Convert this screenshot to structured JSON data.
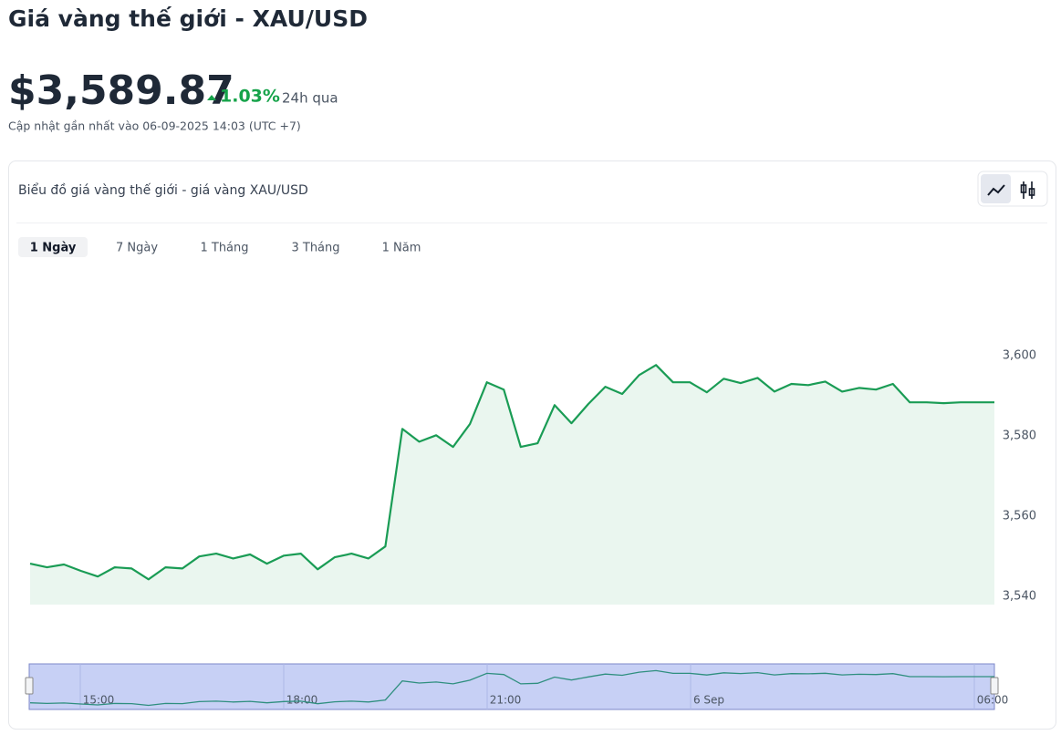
{
  "header": {
    "title": "Giá vàng thế giới - XAU/USD",
    "price": "$3,589.87",
    "change": "1.03%",
    "period": "24h qua",
    "updated": "Cập nhật gần nhất vào 06-09-2025 14:03 (UTC +7)"
  },
  "card": {
    "title": "Biểu đồ giá vàng thế giới - giá vàng XAU/USD",
    "tabs": [
      "1 Ngày",
      "7 Ngày",
      "1 Tháng",
      "3 Tháng",
      "1 Năm"
    ]
  },
  "chart_data": {
    "type": "area",
    "color": "#1a9c55",
    "values": [
      3548.2,
      3547.3,
      3548.0,
      3546.4,
      3545.0,
      3547.3,
      3547.0,
      3544.3,
      3547.3,
      3547.0,
      3550.0,
      3550.7,
      3549.5,
      3550.5,
      3548.2,
      3550.2,
      3550.7,
      3546.8,
      3549.8,
      3550.7,
      3549.5,
      3552.5,
      3581.8,
      3578.6,
      3580.2,
      3577.3,
      3583.0,
      3593.4,
      3591.6,
      3577.3,
      3578.2,
      3587.7,
      3583.2,
      3588.0,
      3592.3,
      3590.5,
      3595.2,
      3597.7,
      3593.4,
      3593.4,
      3590.9,
      3594.3,
      3593.2,
      3594.5,
      3591.1,
      3593.0,
      3592.7,
      3593.6,
      3591.1,
      3592.0,
      3591.6,
      3593.0,
      3588.4,
      3588.4,
      3588.2,
      3588.4,
      3588.4,
      3588.4
    ],
    "ylim": [
      3538,
      3608
    ],
    "yticks": [
      {
        "value": 3540,
        "label": "3,540"
      },
      {
        "value": 3560,
        "label": "3,560"
      },
      {
        "value": 3580,
        "label": "3,580"
      },
      {
        "value": 3600,
        "label": "3,600"
      }
    ],
    "navigator_labels": [
      "15:00",
      "18:00",
      "21:00",
      "6 Sep",
      "06:00"
    ]
  }
}
